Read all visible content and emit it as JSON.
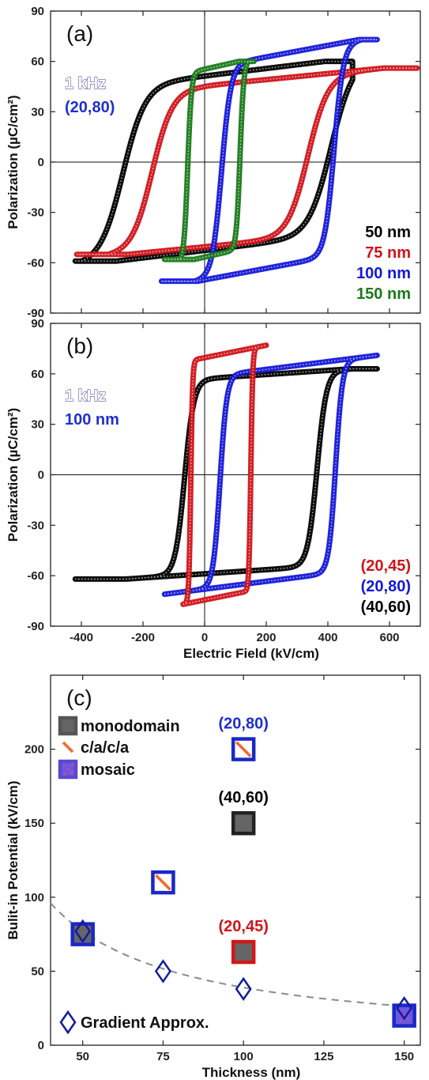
{
  "chart_data": [
    {
      "type": "line",
      "panel_label": "(a)",
      "xlim": [
        -500,
        700
      ],
      "ylim": [
        -90,
        90
      ],
      "xticks": [
        -400,
        -200,
        0,
        200,
        400,
        600
      ],
      "xtick_labels": [
        "",
        "",
        "",
        "",
        "",
        ""
      ],
      "yticks": [
        -90,
        -60,
        -30,
        0,
        30,
        60,
        90
      ],
      "ytick_labels": [
        "-90",
        "-60",
        "-30",
        "0",
        "30",
        "60",
        "90"
      ],
      "ylabel": "Polarization (µC/cm²)",
      "xlabel": "",
      "annotations": [
        {
          "text": "1 kHz",
          "color": "#ffffff",
          "stroke": "#5a5aa8"
        },
        {
          "text": "(20,80)",
          "color": "#1f2fd0"
        }
      ],
      "legend": [
        {
          "text": "50 nm",
          "color": "#000000"
        },
        {
          "text": "75 nm",
          "color": "#d0141a"
        },
        {
          "text": "100 nm",
          "color": "#1418d8"
        },
        {
          "text": "150 nm",
          "color": "#1a7a1a"
        }
      ],
      "series": [
        {
          "color": "#000000",
          "Emin": -420,
          "Emax": 480,
          "Ec_down": -265,
          "Ec_up": 410,
          "Pmax": 60,
          "Pmin": -59,
          "Ps": 52,
          "w": 72,
          "drift": 10
        },
        {
          "color": "#d0141a",
          "Emin": -415,
          "Emax": 690,
          "Ec_down": -170,
          "Ec_up": 335,
          "Pmax": 56,
          "Pmin": -55,
          "Ps": 48,
          "w": 65,
          "drift": 10
        },
        {
          "color": "#1418d8",
          "Emin": -140,
          "Emax": 560,
          "Ec_down": 55,
          "Ec_up": 420,
          "Pmax": 73,
          "Pmin": -71,
          "Ps": 63,
          "w": 30,
          "drift": 12
        },
        {
          "color": "#1a7a1a",
          "Emin": -130,
          "Emax": 160,
          "Ec_down": -55,
          "Ec_up": 115,
          "Pmax": 60,
          "Pmin": -58,
          "Ps": 56,
          "w": 12,
          "drift": 6
        }
      ]
    },
    {
      "type": "line",
      "panel_label": "(b)",
      "xlim": [
        -500,
        700
      ],
      "ylim": [
        -90,
        90
      ],
      "xticks": [
        -400,
        -200,
        0,
        200,
        400,
        600
      ],
      "xtick_labels": [
        "-400",
        "-200",
        "0",
        "200",
        "400",
        "600"
      ],
      "yticks": [
        -90,
        -60,
        -30,
        0,
        30,
        60,
        90
      ],
      "ytick_labels": [
        "-90",
        "-60",
        "-30",
        "0",
        "30",
        "60",
        "90"
      ],
      "ylabel": "Polarization (µC/cm²)",
      "xlabel": "Electric Field (kV/cm)",
      "annotations": [
        {
          "text": "1 kHz",
          "color": "#ffffff",
          "stroke": "#5a5aa8"
        },
        {
          "text": "100 nm",
          "color": "#1f2fd0"
        }
      ],
      "legend": [
        {
          "text": "(20,45)",
          "color": "#d0141a"
        },
        {
          "text": "(20,80)",
          "color": "#1418d8"
        },
        {
          "text": "(40,60)",
          "color": "#000000"
        }
      ],
      "series": [
        {
          "color": "#000000",
          "Emin": -420,
          "Emax": 560,
          "Ec_down": -65,
          "Ec_up": 365,
          "Pmax": 63,
          "Pmin": -62,
          "Ps": 58,
          "w": 30,
          "drift": 6
        },
        {
          "color": "#1418d8",
          "Emin": -130,
          "Emax": 560,
          "Ec_down": 50,
          "Ec_up": 425,
          "Pmax": 73,
          "Pmin": -71,
          "Ps": 63,
          "w": 22,
          "drift": 8
        },
        {
          "color": "#d0141a",
          "Emin": -70,
          "Emax": 200,
          "Ec_down": -45,
          "Ec_up": 150,
          "Pmax": 78,
          "Pmin": -77,
          "Ps": 72,
          "w": 6,
          "drift": 5
        }
      ]
    },
    {
      "type": "scatter",
      "panel_label": "(c)",
      "xlim": [
        40,
        155
      ],
      "ylim": [
        0,
        250
      ],
      "xticks": [
        50,
        75,
        100,
        125,
        150
      ],
      "xtick_labels": [
        "50",
        "75",
        "100",
        "125",
        "150"
      ],
      "yticks": [
        0,
        50,
        100,
        150,
        200
      ],
      "ytick_labels": [
        "0",
        "50",
        "100",
        "150",
        "200"
      ],
      "xlabel": "Thickness (nm)",
      "ylabel": "Bulit-in Potential (kV/cm)",
      "legend": [
        {
          "text": "monodomain",
          "marker": "monodomain"
        },
        {
          "text": "c/a/c/a",
          "marker": "cac"
        },
        {
          "text": "mosaic",
          "marker": "mosaic"
        },
        {
          "text": "Gradient Approx.",
          "marker": "diamond"
        }
      ],
      "points": [
        {
          "x": 50,
          "y": 75,
          "marker": "monodomain",
          "border": "#1a28c8"
        },
        {
          "x": 75,
          "y": 110,
          "marker": "cac",
          "border": "#1a28c8"
        },
        {
          "x": 100,
          "y": 200,
          "marker": "cac",
          "border": "#1a28c8",
          "label": "(20,80)",
          "label_color": "#1f2fd0"
        },
        {
          "x": 100,
          "y": 150,
          "marker": "monodomain",
          "border": "#222222",
          "label": "(40,60)",
          "label_color": "#000000"
        },
        {
          "x": 100,
          "y": 63,
          "marker": "monodomain",
          "border": "#d01818",
          "label": "(20,45)",
          "label_color": "#d0141a"
        },
        {
          "x": 150,
          "y": 20,
          "marker": "mosaic",
          "border": "#1a28c8"
        }
      ],
      "gradient_points": [
        {
          "x": 50,
          "y": 77
        },
        {
          "x": 75,
          "y": 50
        },
        {
          "x": 100,
          "y": 38
        },
        {
          "x": 150,
          "y": 25
        }
      ],
      "fit_curve": {
        "a": 3800,
        "b": 1,
        "color": "#8a8a8a"
      }
    }
  ]
}
